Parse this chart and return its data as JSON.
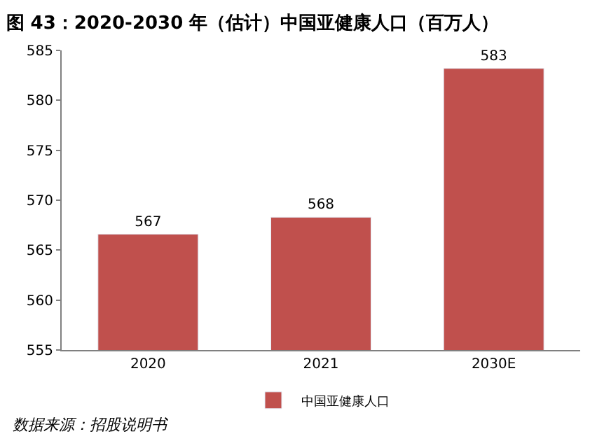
{
  "chart_data": {
    "type": "bar",
    "title": "图 43：2020-2030 年（估计）中国亚健康人口（百万人）",
    "categories": [
      "2020",
      "2021",
      "2030E"
    ],
    "series": [
      {
        "name": "中国亚健康人口",
        "color": "#c0504d",
        "values": [
          566.6,
          568.3,
          583.2
        ],
        "value_labels": [
          "567",
          "568",
          "583"
        ]
      }
    ],
    "ylim": [
      555,
      585
    ],
    "yticks": [
      555,
      560,
      565,
      570,
      575,
      580,
      585
    ],
    "legend": "bottom",
    "annotations": [
      "数据来源：招股说明书"
    ]
  }
}
